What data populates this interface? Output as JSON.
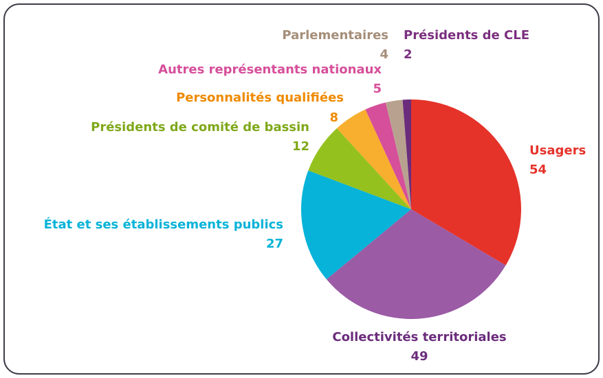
{
  "chart_data": {
    "type": "pie",
    "categories": [
      "Usagers",
      "Collectivités territoriales",
      "État et ses établissements publics",
      "Présidents de comité de bassin",
      "Personnalités qualifiées",
      "Autres représentants nationaux",
      "Parlementaires",
      "Présidents de CLE"
    ],
    "values": [
      54,
      49,
      27,
      12,
      8,
      5,
      4,
      2
    ],
    "colors": [
      "#e5332a",
      "#9b5ba5",
      "#07b3d8",
      "#95c11f",
      "#f8ae2e",
      "#d64f9a",
      "#b8a28f",
      "#6b2c7c"
    ],
    "label_colors": [
      "#e5332a",
      "#6b2c7c",
      "#07b3d8",
      "#7fa81a",
      "#ef8a00",
      "#d64f9a",
      "#a58e79",
      "#7b2f7f"
    ]
  }
}
